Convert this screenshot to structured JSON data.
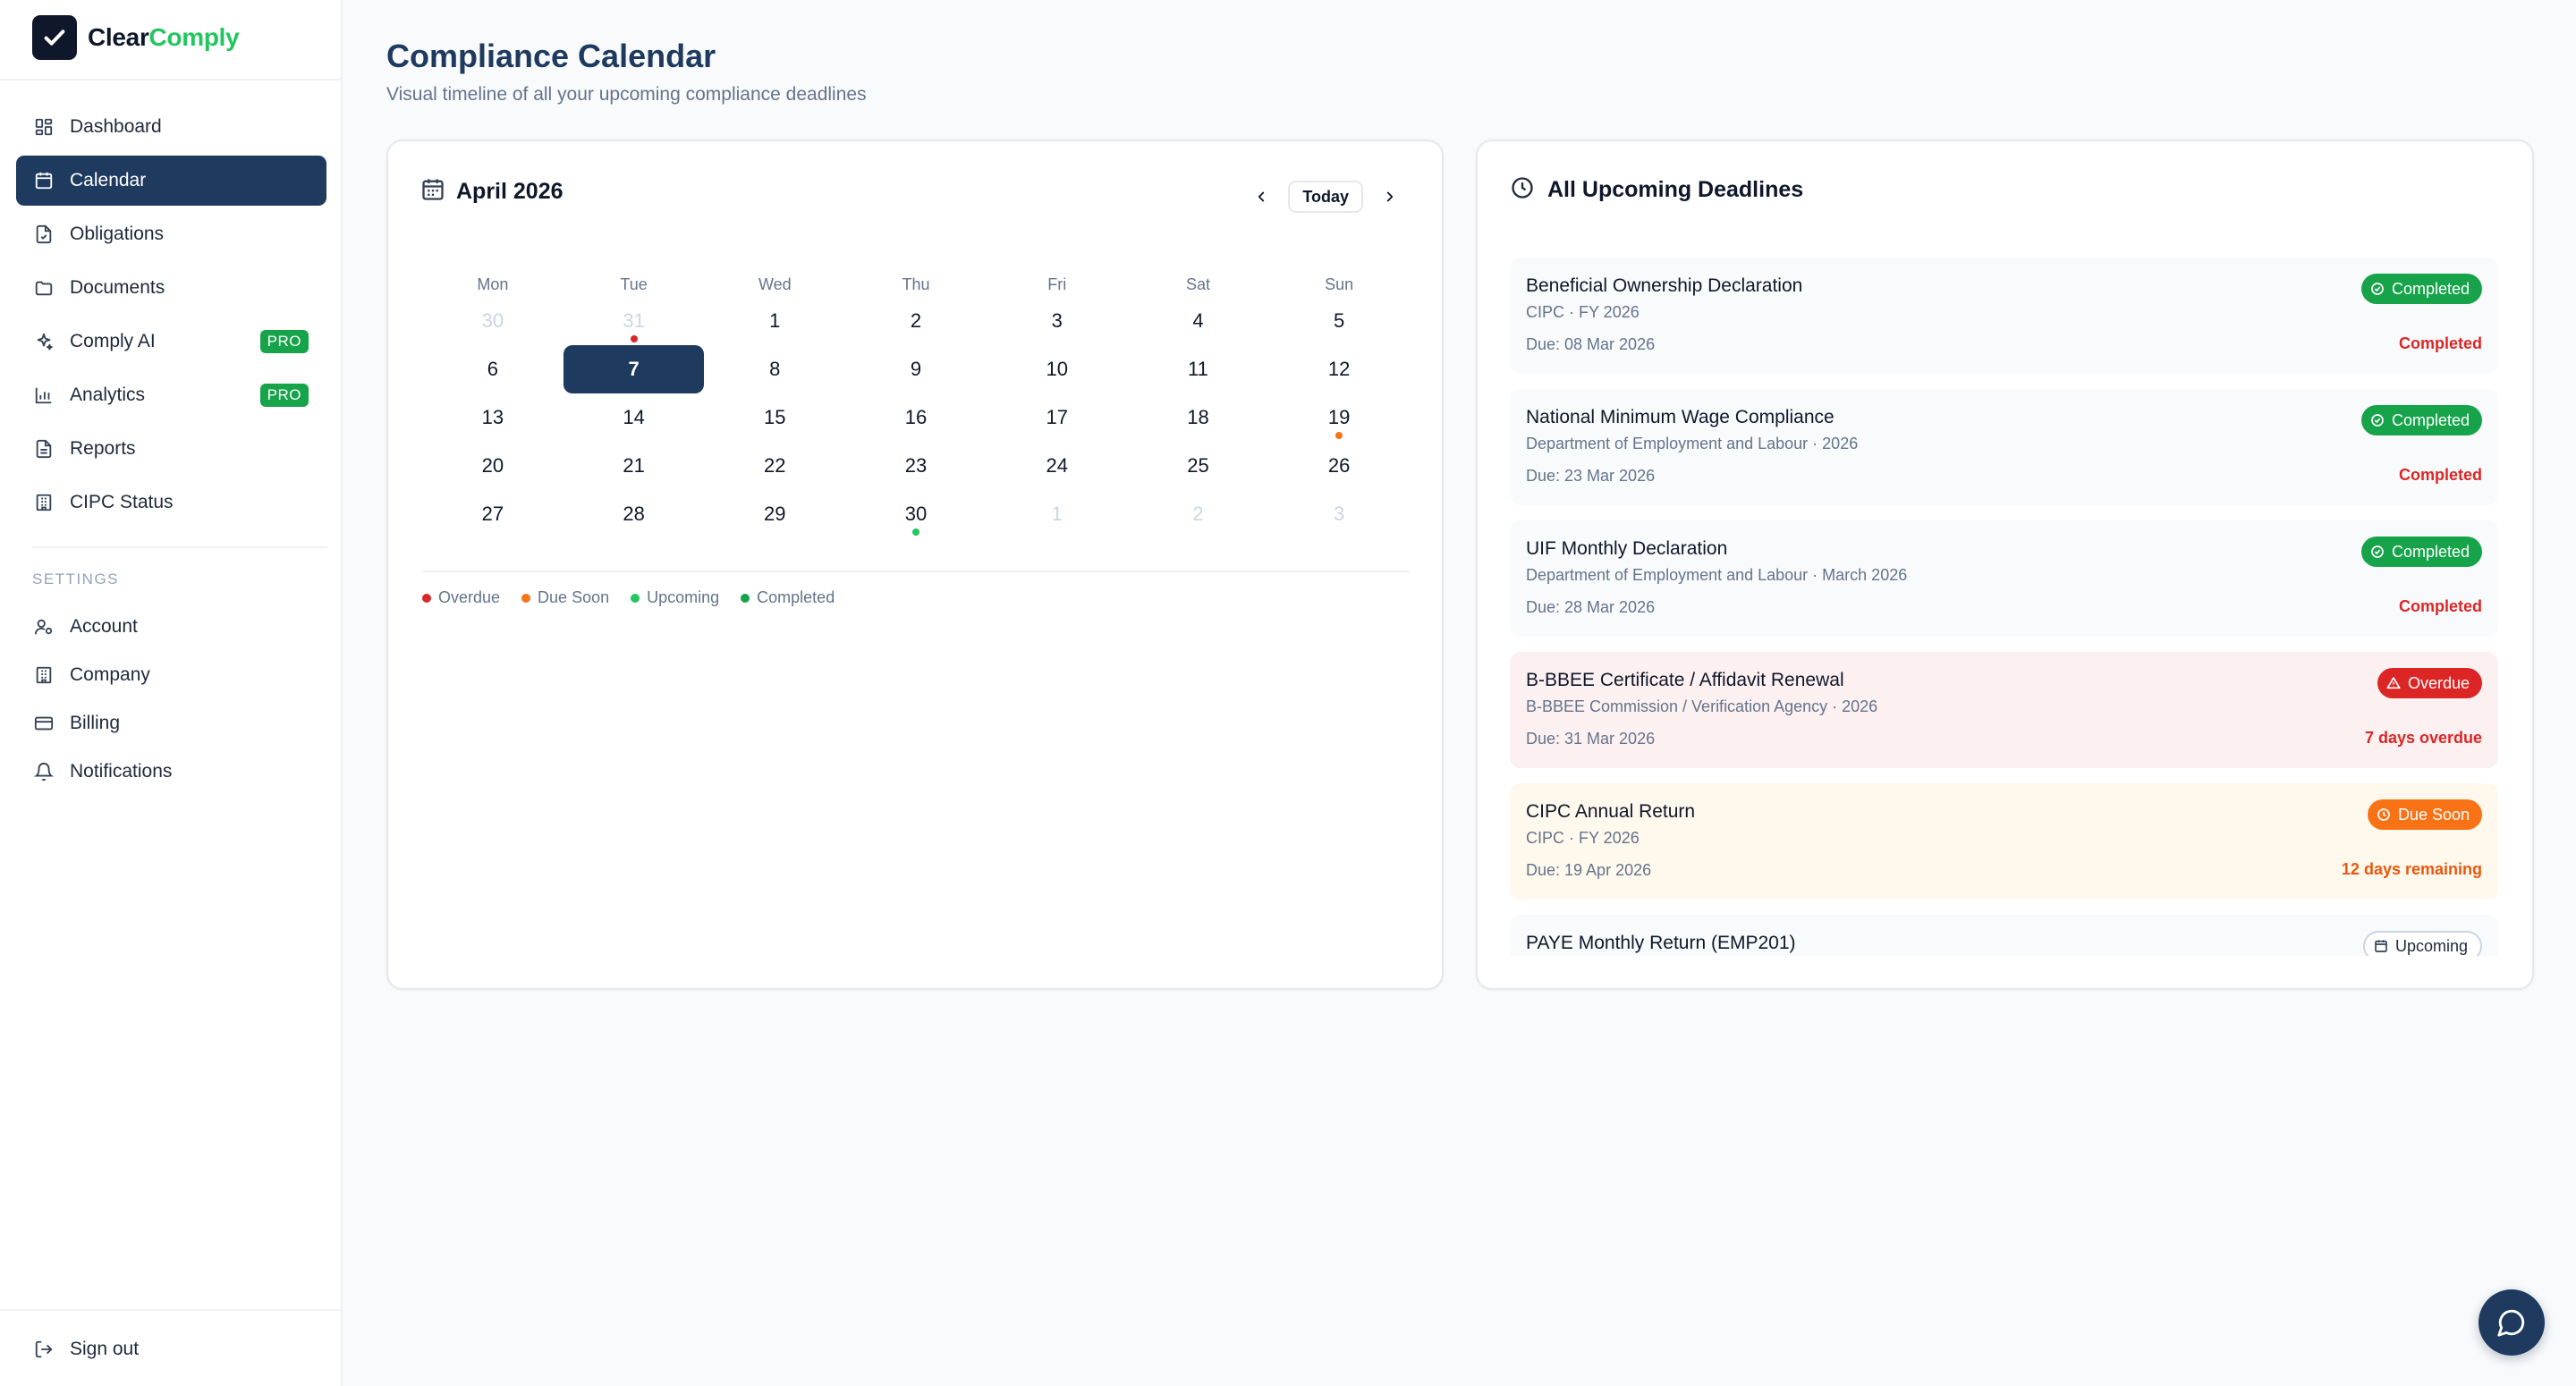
{
  "brand": {
    "name_part1": "Clear",
    "name_part2": "Comply"
  },
  "nav": {
    "items": [
      {
        "label": "Dashboard",
        "icon": "dashboard-icon"
      },
      {
        "label": "Calendar",
        "icon": "calendar-icon",
        "active": true
      },
      {
        "label": "Obligations",
        "icon": "document-check-icon"
      },
      {
        "label": "Documents",
        "icon": "folder-icon"
      },
      {
        "label": "Comply AI",
        "icon": "sparkles-icon",
        "badge": "PRO"
      },
      {
        "label": "Analytics",
        "icon": "bar-chart-icon",
        "badge": "PRO"
      },
      {
        "label": "Reports",
        "icon": "file-text-icon"
      },
      {
        "label": "CIPC Status",
        "icon": "building-icon"
      }
    ],
    "settings_label": "SETTINGS",
    "settings_items": [
      {
        "label": "Account",
        "icon": "user-cog-icon"
      },
      {
        "label": "Company",
        "icon": "building-icon"
      },
      {
        "label": "Billing",
        "icon": "credit-card-icon"
      },
      {
        "label": "Notifications",
        "icon": "bell-icon"
      }
    ],
    "sign_out": "Sign out"
  },
  "header": {
    "title": "Compliance Calendar",
    "subtitle": "Visual timeline of all your upcoming compliance deadlines"
  },
  "calendar": {
    "month_label": "April 2026",
    "today_label": "Today",
    "weekdays": [
      "Mon",
      "Tue",
      "Wed",
      "Thu",
      "Fri",
      "Sat",
      "Sun"
    ],
    "weeks": [
      [
        {
          "d": "30",
          "muted": true
        },
        {
          "d": "31",
          "muted": true,
          "dot": "overdue"
        },
        {
          "d": "1"
        },
        {
          "d": "2"
        },
        {
          "d": "3"
        },
        {
          "d": "4"
        },
        {
          "d": "5"
        }
      ],
      [
        {
          "d": "6"
        },
        {
          "d": "7",
          "today": true
        },
        {
          "d": "8"
        },
        {
          "d": "9"
        },
        {
          "d": "10"
        },
        {
          "d": "11"
        },
        {
          "d": "12"
        }
      ],
      [
        {
          "d": "13"
        },
        {
          "d": "14"
        },
        {
          "d": "15"
        },
        {
          "d": "16"
        },
        {
          "d": "17"
        },
        {
          "d": "18"
        },
        {
          "d": "19",
          "dot": "soon"
        }
      ],
      [
        {
          "d": "20"
        },
        {
          "d": "21"
        },
        {
          "d": "22"
        },
        {
          "d": "23"
        },
        {
          "d": "24"
        },
        {
          "d": "25"
        },
        {
          "d": "26"
        }
      ],
      [
        {
          "d": "27"
        },
        {
          "d": "28"
        },
        {
          "d": "29"
        },
        {
          "d": "30",
          "dot": "upcoming"
        },
        {
          "d": "1",
          "muted": true
        },
        {
          "d": "2",
          "muted": true
        },
        {
          "d": "3",
          "muted": true
        }
      ]
    ],
    "legend": [
      {
        "label": "Overdue",
        "color": "#dc2626"
      },
      {
        "label": "Due Soon",
        "color": "#f97316"
      },
      {
        "label": "Upcoming",
        "color": "#22c55e"
      },
      {
        "label": "Completed",
        "color": "#16a34a"
      }
    ]
  },
  "deadlines": {
    "title": "All Upcoming Deadlines",
    "items": [
      {
        "name": "Beneficial Ownership Declaration",
        "org": "CIPC · FY 2026",
        "due": "Due: 08 Mar 2026",
        "badge": "Completed",
        "kind": "completed",
        "status": "Completed"
      },
      {
        "name": "National Minimum Wage Compliance",
        "org": "Department of Employment and Labour · 2026",
        "due": "Due: 23 Mar 2026",
        "badge": "Completed",
        "kind": "completed",
        "status": "Completed"
      },
      {
        "name": "UIF Monthly Declaration",
        "org": "Department of Employment and Labour · March 2026",
        "due": "Due: 28 Mar 2026",
        "badge": "Completed",
        "kind": "completed",
        "status": "Completed"
      },
      {
        "name": "B-BBEE Certificate / Affidavit Renewal",
        "org": "B-BBEE Commission / Verification Agency · 2026",
        "due": "Due: 31 Mar 2026",
        "badge": "Overdue",
        "kind": "overdue",
        "status": "7 days overdue"
      },
      {
        "name": "CIPC Annual Return",
        "org": "CIPC · FY 2026",
        "due": "Due: 19 Apr 2026",
        "badge": "Due Soon",
        "kind": "soon",
        "status": "12 days remaining"
      },
      {
        "name": "PAYE Monthly Return (EMP201)",
        "org": "",
        "due": "",
        "badge": "Upcoming",
        "kind": "upcoming",
        "status": ""
      }
    ]
  },
  "colors": {
    "accent": "#1e3a5f",
    "brand_green": "#22c55e",
    "completed": "#16a34a",
    "overdue": "#dc2626",
    "due_soon": "#f97316"
  }
}
